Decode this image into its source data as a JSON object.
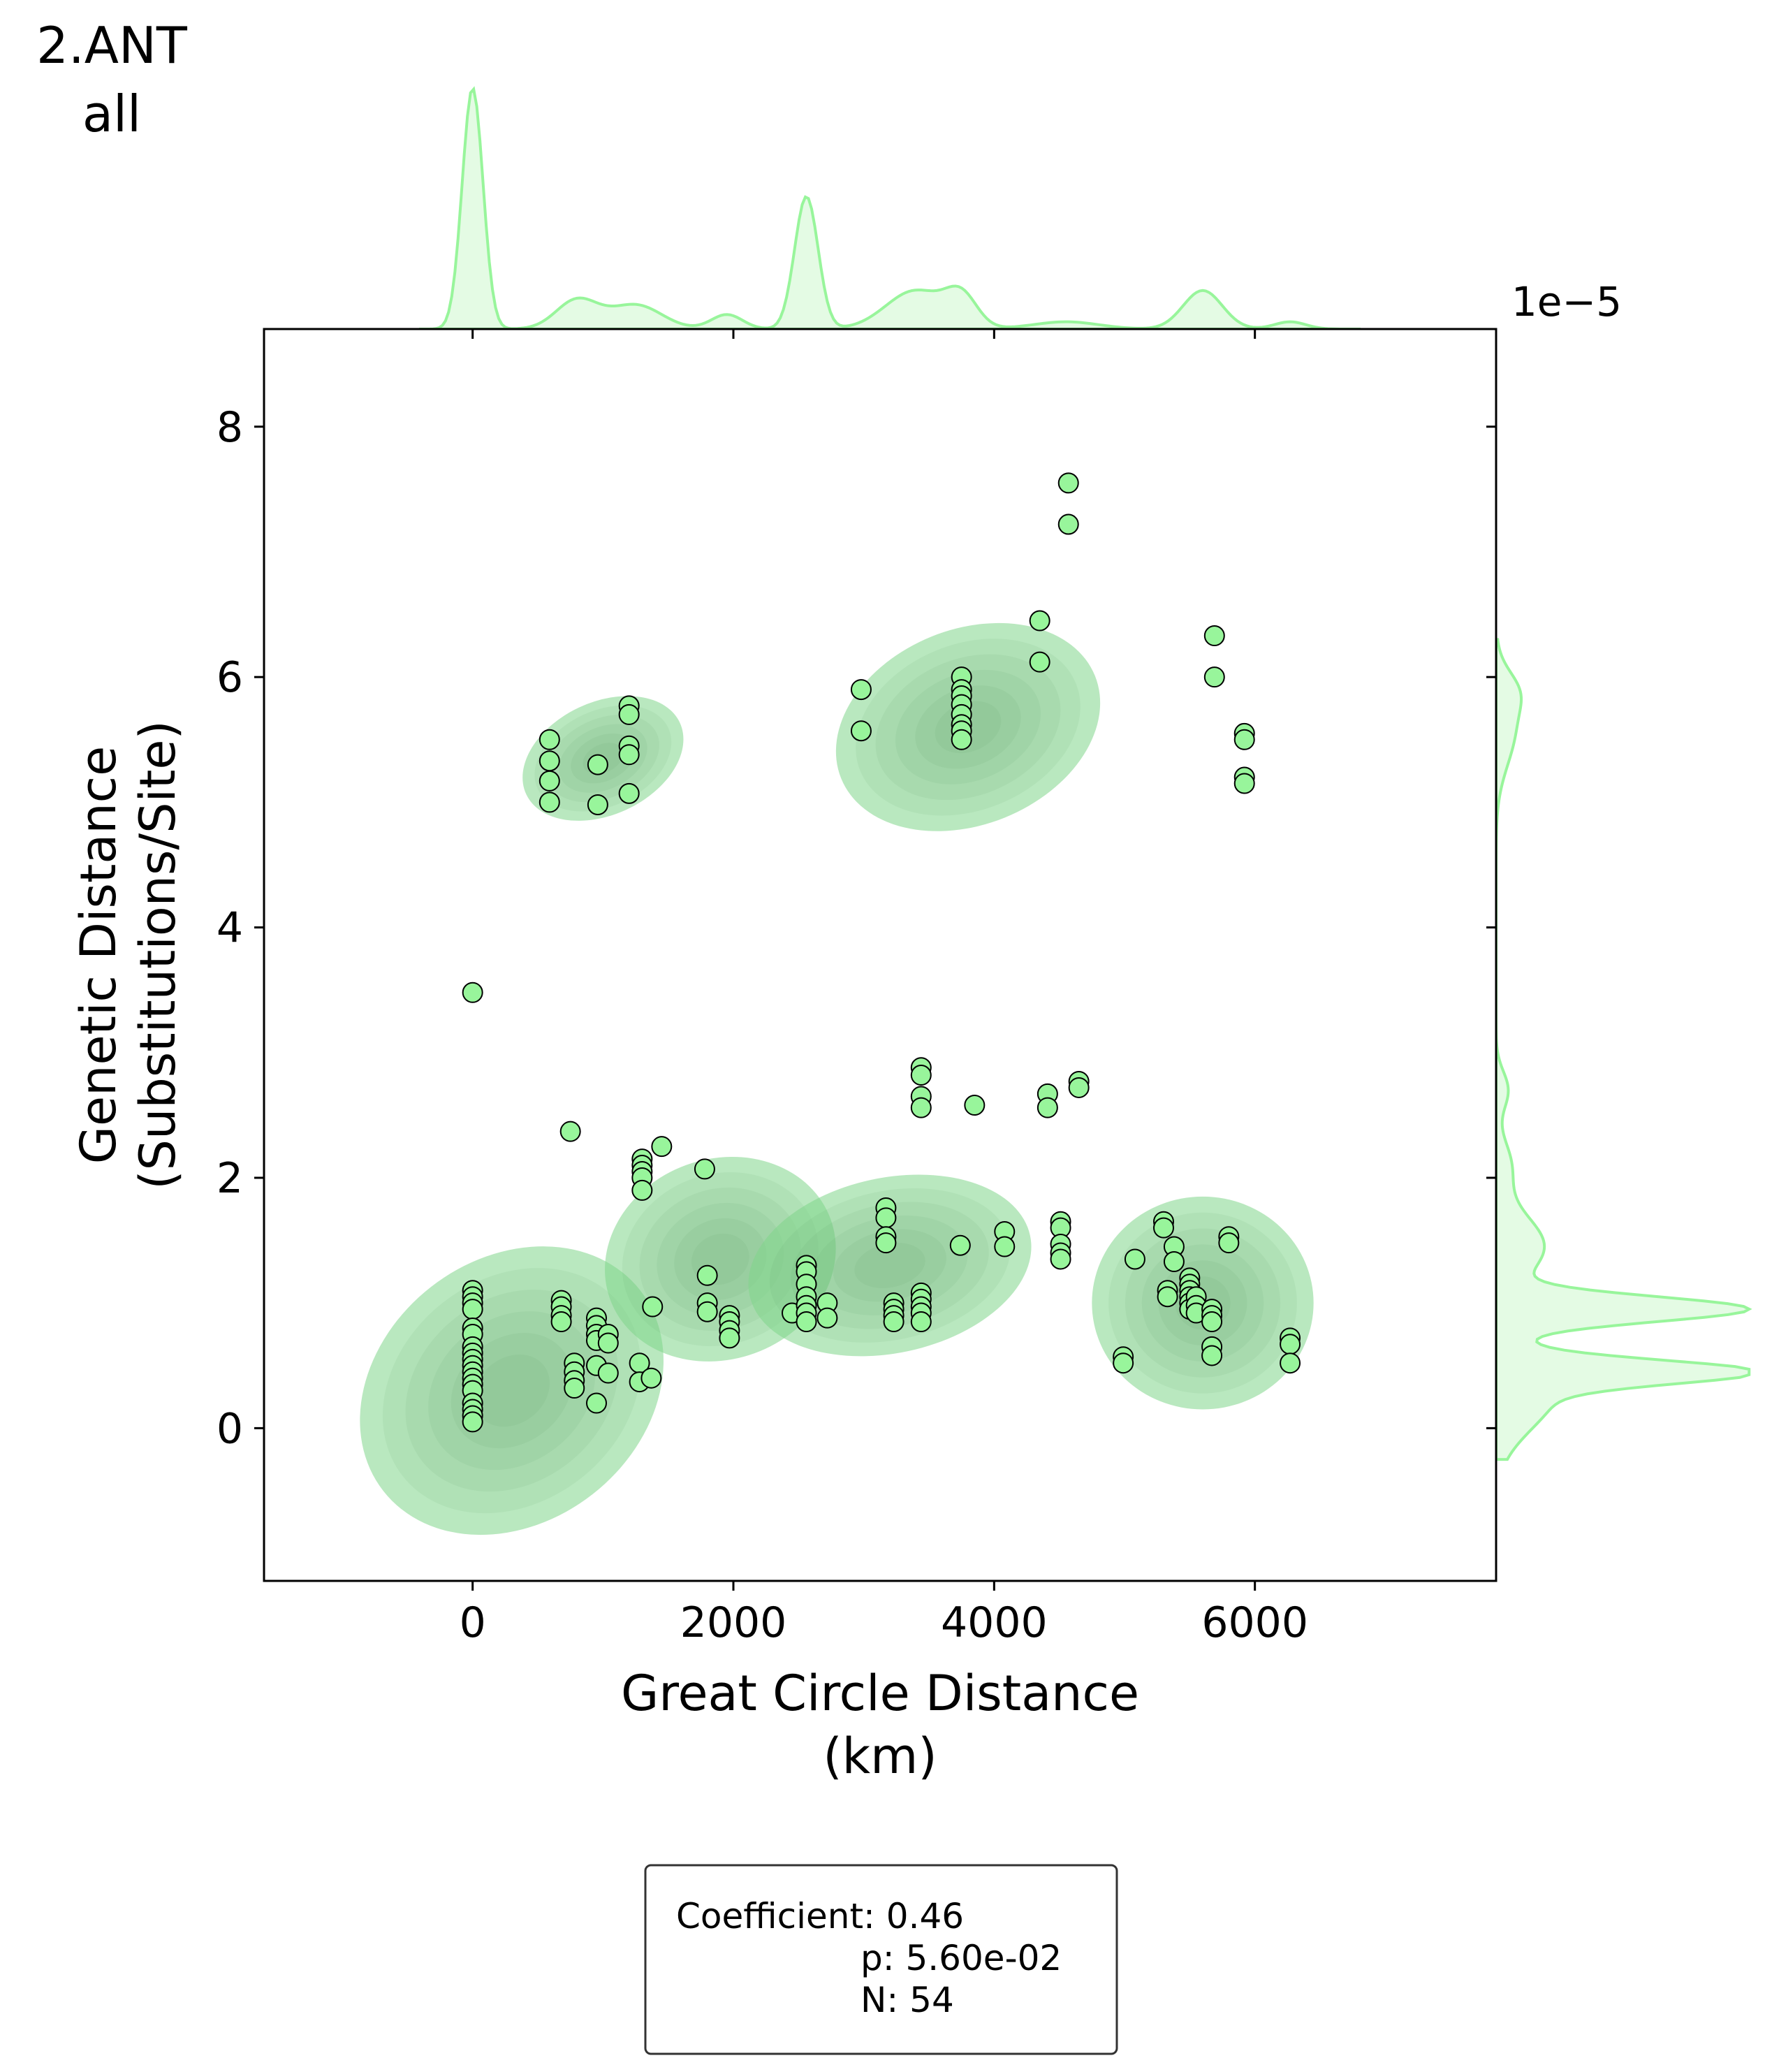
{
  "chart_data": {
    "type": "scatter",
    "title_lines": [
      "2.ANT",
      "all"
    ],
    "xlabel_lines": [
      "Great Circle Distance",
      "(km)"
    ],
    "ylabel_lines": [
      "Genetic Distance",
      "(Substitutions/Site)"
    ],
    "y_offset_label": "1e−5",
    "xlim": [
      -1600,
      7850
    ],
    "ylim": [
      -1.22,
      8.78
    ],
    "x_ticks": [
      0,
      2000,
      4000,
      6000
    ],
    "y_ticks": [
      0,
      2,
      4,
      6,
      8
    ],
    "point_color": "#98f59b",
    "kde_color": "#7fd68a",
    "points": [
      [
        0,
        3.48
      ],
      [
        0,
        1.1
      ],
      [
        0,
        1.05
      ],
      [
        0,
        1.0
      ],
      [
        0,
        0.95
      ],
      [
        0,
        0.8
      ],
      [
        0,
        0.75
      ],
      [
        0,
        0.65
      ],
      [
        0,
        0.6
      ],
      [
        0,
        0.55
      ],
      [
        0,
        0.5
      ],
      [
        0,
        0.45
      ],
      [
        0,
        0.4
      ],
      [
        0,
        0.35
      ],
      [
        0,
        0.3
      ],
      [
        0,
        0.2
      ],
      [
        0,
        0.15
      ],
      [
        0,
        0.1
      ],
      [
        0,
        0.05
      ],
      [
        590,
        5.5
      ],
      [
        590,
        5.33
      ],
      [
        590,
        5.17
      ],
      [
        590,
        5.0
      ],
      [
        750,
        2.37
      ],
      [
        680,
        1.02
      ],
      [
        680,
        0.97
      ],
      [
        680,
        0.9
      ],
      [
        680,
        0.85
      ],
      [
        780,
        0.52
      ],
      [
        780,
        0.45
      ],
      [
        780,
        0.38
      ],
      [
        780,
        0.32
      ],
      [
        960,
        5.3
      ],
      [
        960,
        4.98
      ],
      [
        950,
        0.88
      ],
      [
        950,
        0.82
      ],
      [
        950,
        0.75
      ],
      [
        950,
        0.7
      ],
      [
        950,
        0.5
      ],
      [
        950,
        0.2
      ],
      [
        1040,
        0.75
      ],
      [
        1040,
        0.68
      ],
      [
        1040,
        0.44
      ],
      [
        1200,
        5.77
      ],
      [
        1200,
        5.7
      ],
      [
        1200,
        5.45
      ],
      [
        1200,
        5.38
      ],
      [
        1200,
        5.07
      ],
      [
        1300,
        2.15
      ],
      [
        1300,
        2.1
      ],
      [
        1300,
        2.05
      ],
      [
        1300,
        2.0
      ],
      [
        1300,
        1.9
      ],
      [
        1450,
        2.25
      ],
      [
        1280,
        0.52
      ],
      [
        1280,
        0.37
      ],
      [
        1370,
        0.4
      ],
      [
        1380,
        0.97
      ],
      [
        1780,
        2.07
      ],
      [
        1800,
        1.22
      ],
      [
        1800,
        1.0
      ],
      [
        1800,
        0.93
      ],
      [
        1970,
        0.9
      ],
      [
        1970,
        0.85
      ],
      [
        1970,
        0.78
      ],
      [
        1970,
        0.72
      ],
      [
        2450,
        0.92
      ],
      [
        2560,
        1.3
      ],
      [
        2560,
        1.25
      ],
      [
        2560,
        1.15
      ],
      [
        2560,
        1.05
      ],
      [
        2560,
        0.98
      ],
      [
        2560,
        0.92
      ],
      [
        2560,
        0.85
      ],
      [
        2720,
        1.0
      ],
      [
        2720,
        0.88
      ],
      [
        2980,
        5.9
      ],
      [
        2980,
        5.57
      ],
      [
        3170,
        1.76
      ],
      [
        3170,
        1.68
      ],
      [
        3170,
        1.53
      ],
      [
        3170,
        1.48
      ],
      [
        3230,
        1.0
      ],
      [
        3230,
        0.95
      ],
      [
        3230,
        0.9
      ],
      [
        3230,
        0.85
      ],
      [
        3440,
        2.88
      ],
      [
        3440,
        2.82
      ],
      [
        3440,
        2.65
      ],
      [
        3440,
        2.56
      ],
      [
        3440,
        1.08
      ],
      [
        3440,
        1.03
      ],
      [
        3440,
        0.97
      ],
      [
        3440,
        0.92
      ],
      [
        3440,
        0.85
      ],
      [
        3750,
        6.0
      ],
      [
        3750,
        5.9
      ],
      [
        3750,
        5.85
      ],
      [
        3750,
        5.78
      ],
      [
        3750,
        5.7
      ],
      [
        3750,
        5.62
      ],
      [
        3750,
        5.57
      ],
      [
        3750,
        5.5
      ],
      [
        3740,
        1.46
      ],
      [
        3850,
        2.58
      ],
      [
        4080,
        1.57
      ],
      [
        4080,
        1.45
      ],
      [
        4350,
        6.45
      ],
      [
        4350,
        6.12
      ],
      [
        4410,
        2.67
      ],
      [
        4410,
        2.56
      ],
      [
        4510,
        1.65
      ],
      [
        4510,
        1.6
      ],
      [
        4510,
        1.47
      ],
      [
        4510,
        1.4
      ],
      [
        4510,
        1.35
      ],
      [
        4570,
        7.55
      ],
      [
        4570,
        7.22
      ],
      [
        4650,
        2.77
      ],
      [
        4650,
        2.72
      ],
      [
        4990,
        0.57
      ],
      [
        4990,
        0.52
      ],
      [
        5080,
        1.35
      ],
      [
        5300,
        1.65
      ],
      [
        5300,
        1.6
      ],
      [
        5330,
        1.1
      ],
      [
        5330,
        1.05
      ],
      [
        5380,
        1.45
      ],
      [
        5380,
        1.33
      ],
      [
        5500,
        1.2
      ],
      [
        5500,
        1.15
      ],
      [
        5500,
        1.1
      ],
      [
        5500,
        1.05
      ],
      [
        5500,
        1.0
      ],
      [
        5500,
        0.95
      ],
      [
        5550,
        1.05
      ],
      [
        5550,
        0.98
      ],
      [
        5550,
        0.92
      ],
      [
        5670,
        0.95
      ],
      [
        5670,
        0.9
      ],
      [
        5670,
        0.85
      ],
      [
        5670,
        0.65
      ],
      [
        5670,
        0.58
      ],
      [
        5690,
        6.33
      ],
      [
        5690,
        6.0
      ],
      [
        5800,
        1.53
      ],
      [
        5800,
        1.48
      ],
      [
        5920,
        5.55
      ],
      [
        5920,
        5.5
      ],
      [
        5920,
        5.2
      ],
      [
        5920,
        5.15
      ],
      [
        6270,
        0.72
      ],
      [
        6270,
        0.67
      ],
      [
        6270,
        0.52
      ]
    ],
    "kde_clusters": [
      {
        "cx": 300,
        "cy": 0.3,
        "rx": 1250,
        "ry": 1.05,
        "angle": -38
      },
      {
        "cx": 1900,
        "cy": 1.35,
        "rx": 900,
        "ry": 0.8,
        "angle": -20
      },
      {
        "cx": 3200,
        "cy": 1.3,
        "rx": 1100,
        "ry": 0.7,
        "angle": -12
      },
      {
        "cx": 5600,
        "cy": 1.0,
        "rx": 850,
        "ry": 0.85,
        "angle": 0
      },
      {
        "cx": 1000,
        "cy": 5.35,
        "rx": 650,
        "ry": 0.45,
        "angle": -25
      },
      {
        "cx": 3800,
        "cy": 5.6,
        "rx": 1050,
        "ry": 0.78,
        "angle": -22
      }
    ],
    "x_marginal_peaks": [
      [
        0,
        1.0,
        80
      ],
      [
        800,
        0.12,
        160
      ],
      [
        1250,
        0.1,
        200
      ],
      [
        1950,
        0.06,
        120
      ],
      [
        2560,
        0.55,
        90
      ],
      [
        3400,
        0.16,
        230
      ],
      [
        3750,
        0.12,
        120
      ],
      [
        4550,
        0.03,
        250
      ],
      [
        5600,
        0.16,
        150
      ],
      [
        6270,
        0.03,
        120
      ]
    ],
    "y_marginal_peaks": [
      [
        0.95,
        1.0,
        0.1
      ],
      [
        0.45,
        0.88,
        0.09
      ],
      [
        0.3,
        0.25,
        0.3
      ],
      [
        1.45,
        0.2,
        0.25
      ],
      [
        2.1,
        0.06,
        0.2
      ],
      [
        2.7,
        0.05,
        0.15
      ],
      [
        5.6,
        0.08,
        0.3
      ],
      [
        5.9,
        0.05,
        0.15
      ]
    ],
    "stats": {
      "coefficient": "Coefficient: 0.46",
      "p": "p: 5.60e-02",
      "n": "N: 54"
    }
  }
}
